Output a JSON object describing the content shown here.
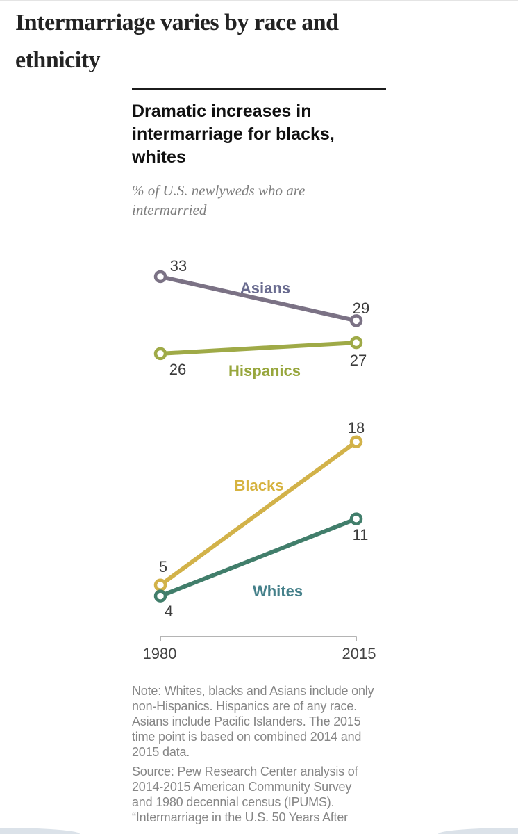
{
  "page": {
    "headline_lines": [
      "Intermarriage varies by race and",
      "ethnicity"
    ]
  },
  "card": {
    "title_lines": [
      "Dramatic increases in",
      "intermarriage for blacks,",
      "whites"
    ],
    "subtitle_lines": [
      "% of U.S. newlyweds who are",
      "intermarried"
    ],
    "note_lines": [
      "Note: Whites, blacks and Asians include only",
      "non-Hispanics. Hispanics are of any race.",
      "Asians include Pacific Islanders. The 2015",
      "time point is based on combined 2014 and",
      "2015 data."
    ],
    "source_lines": [
      "Source: Pew Research Center analysis of",
      "2014-2015 American Community Survey",
      "and 1980 decennial census (IPUMS).",
      "“Intermarriage in the U.S. 50 Years After"
    ]
  },
  "chart_data": {
    "type": "line",
    "variant": "slope-chart",
    "x": [
      1980,
      2015
    ],
    "x_tick_labels": [
      "1980",
      "2015"
    ],
    "series": [
      {
        "name": "Asians",
        "values": [
          33,
          29
        ],
        "color": "#7b7285",
        "label_color": "#6a6c90"
      },
      {
        "name": "Hispanics",
        "values": [
          26,
          27
        ],
        "color": "#9faa47",
        "label_color": "#97a63c"
      },
      {
        "name": "Blacks",
        "values": [
          5,
          18
        ],
        "color": "#d2b249",
        "label_color": "#d6b340"
      },
      {
        "name": "Whites",
        "values": [
          4,
          11
        ],
        "color": "#417e6b",
        "label_color": "#45808a"
      }
    ],
    "value_labels_shown": true,
    "value_label_color": "#3b3b3b",
    "axis_color": "#9b9b9b",
    "axis_label_color": "#424242",
    "ylim_implied": [
      0,
      36
    ],
    "grid": false,
    "legend": "inline-series-labels"
  }
}
